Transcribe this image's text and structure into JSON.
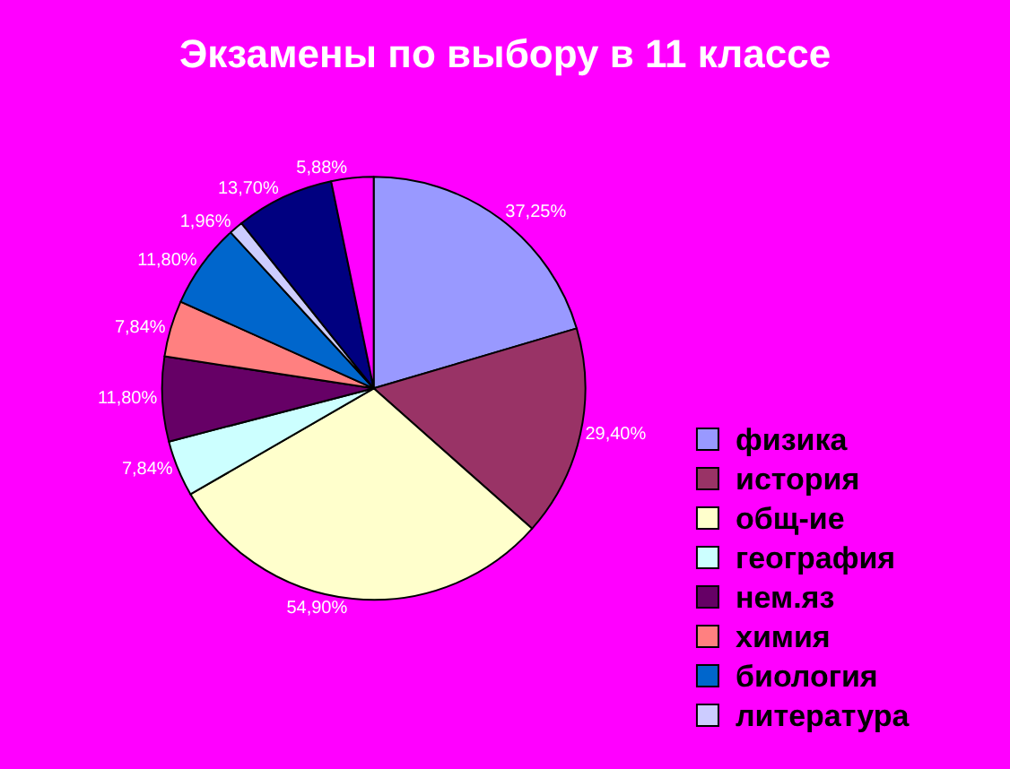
{
  "chart_data": {
    "type": "pie",
    "title": "Экзамены по выбору в 11 классе",
    "categories": [
      "физика",
      "история",
      "общ-ие",
      "география",
      "нем.яз",
      "химия",
      "биология",
      "литература",
      null,
      null
    ],
    "values": [
      37.25,
      29.4,
      54.9,
      7.84,
      11.8,
      7.84,
      11.8,
      1.96,
      13.7,
      5.88
    ],
    "value_labels": [
      "37,25%",
      "29,40%",
      "54,90%",
      "7,84%",
      "11,80%",
      "7,84%",
      "11,80%",
      "1,96%",
      "13,70%",
      "5,88%"
    ],
    "colors": [
      "#9999ff",
      "#993366",
      "#ffffcc",
      "#ccffff",
      "#660066",
      "#ff8080",
      "#0066cc",
      "#ccccff",
      "#000080",
      "#ff00ff"
    ],
    "legend": "bottom right"
  }
}
